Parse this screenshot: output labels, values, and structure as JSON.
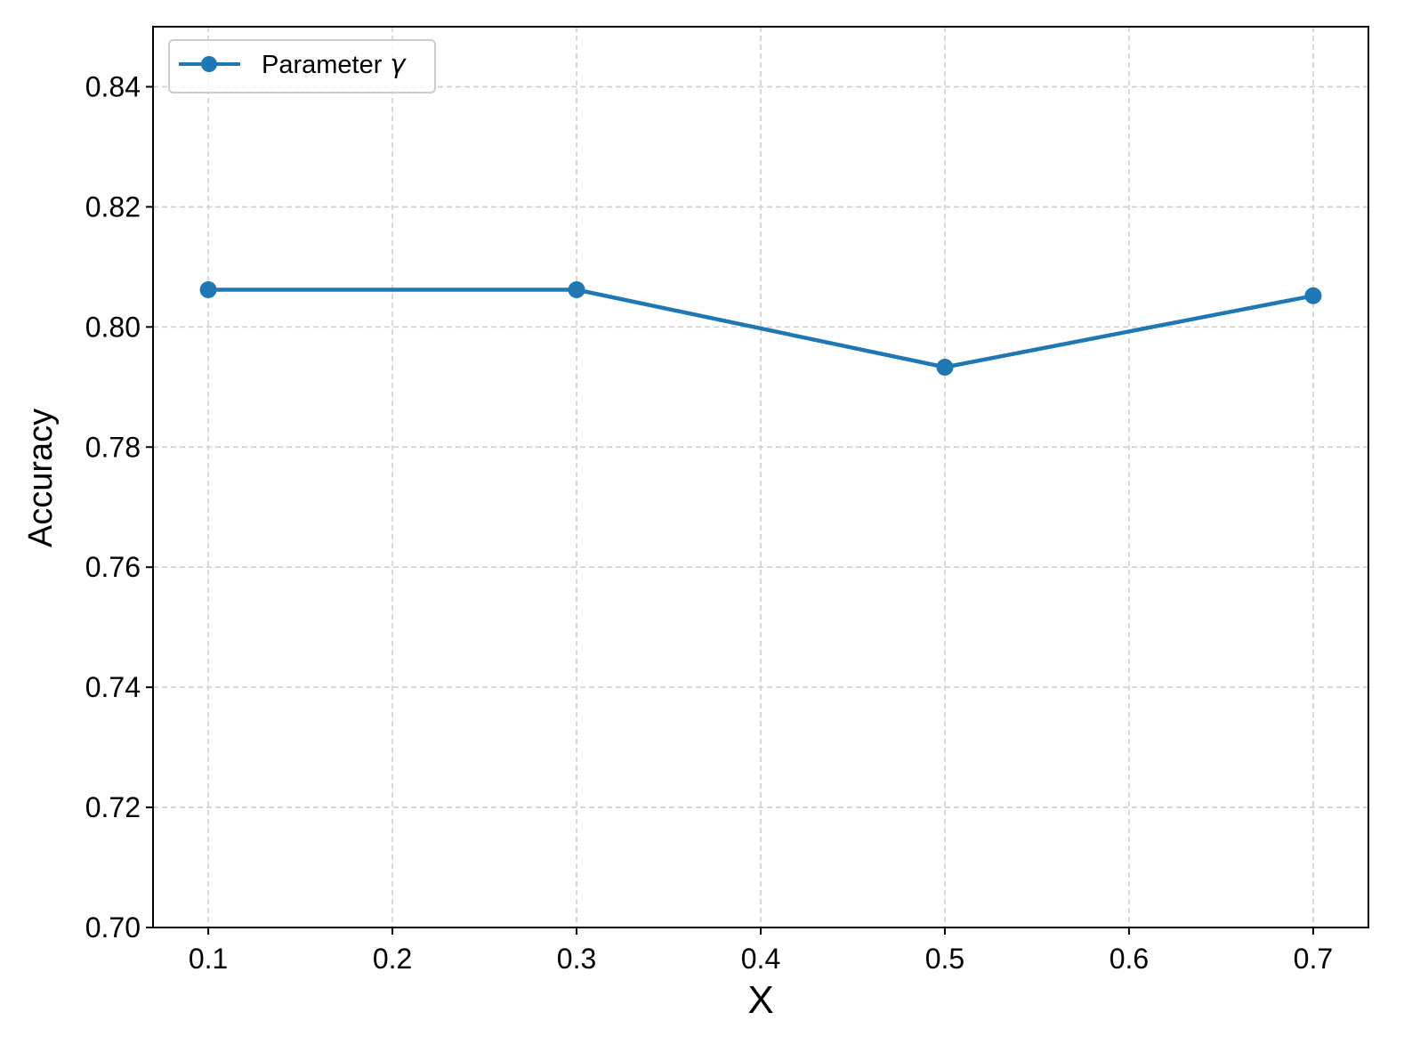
{
  "chart_data": {
    "type": "line",
    "title": "",
    "xlabel": "X",
    "ylabel": "Accuracy",
    "x": [
      0.1,
      0.3,
      0.5,
      0.7
    ],
    "series": [
      {
        "name": "Parameter γ",
        "name_prefix": "Parameter",
        "name_symbol": "γ",
        "values": [
          0.8062,
          0.8062,
          0.7933,
          0.8052
        ],
        "color": "#1f77b4",
        "marker": "circle"
      }
    ],
    "xlim": [
      0.07,
      0.73
    ],
    "ylim": [
      0.7,
      0.85
    ],
    "xticks": [
      0.1,
      0.2,
      0.3,
      0.4,
      0.5,
      0.6,
      0.7
    ],
    "xtick_labels": [
      "0.1",
      "0.2",
      "0.3",
      "0.4",
      "0.5",
      "0.6",
      "0.7"
    ],
    "yticks": [
      0.7,
      0.72,
      0.74,
      0.76,
      0.78,
      0.8,
      0.82,
      0.84
    ],
    "ytick_labels": [
      "0.70",
      "0.72",
      "0.74",
      "0.76",
      "0.78",
      "0.80",
      "0.82",
      "0.84"
    ],
    "grid": true,
    "grid_style": "dashed",
    "legend_position": "top-left"
  }
}
